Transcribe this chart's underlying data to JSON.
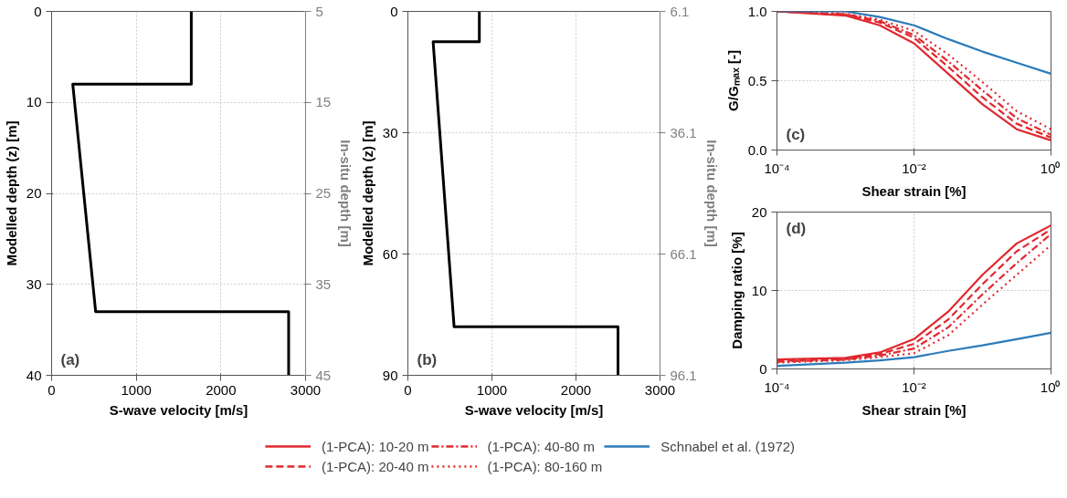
{
  "chart_data": [
    {
      "type": "line",
      "xlabel": "S-wave velocity [m/s]",
      "ylabel": "Modelled depth (z) [m]",
      "y2label": "In-situ depth [m]",
      "annotations": [
        "(a)"
      ],
      "grid": true,
      "marker": "none",
      "xlim": [
        0,
        3000
      ],
      "xticks": [
        0,
        1000,
        2000,
        3000
      ],
      "ylim": [
        40,
        0
      ],
      "yticks": [
        0,
        10,
        20,
        30,
        40
      ],
      "y2lim": [
        45,
        5
      ],
      "y2ticks": [
        5,
        15,
        25,
        35,
        45
      ],
      "series": [
        {
          "color": "#000000",
          "x": [
            1650,
            1650,
            250,
            520,
            2800,
            2800
          ],
          "values": [
            0,
            8,
            8,
            33,
            33,
            40
          ]
        }
      ]
    },
    {
      "type": "line",
      "xlabel": "S-wave velocity [m/s]",
      "ylabel": "Modelled depth (z) [m]",
      "y2label": "In-situ depth [m]",
      "annotations": [
        "(b)"
      ],
      "grid": true,
      "marker": "none",
      "xlim": [
        0,
        3000
      ],
      "xticks": [
        0,
        1000,
        2000,
        3000
      ],
      "ylim": [
        90,
        0
      ],
      "yticks": [
        0,
        30,
        60,
        90
      ],
      "y2lim": [
        96.1,
        6.1
      ],
      "y2ticks": [
        6.1,
        36.1,
        66.1,
        96.1
      ],
      "series": [
        {
          "color": "#000000",
          "x": [
            850,
            850,
            300,
            550,
            2500,
            2500
          ],
          "values": [
            0,
            7.5,
            7.5,
            78,
            78,
            90
          ]
        }
      ]
    },
    {
      "type": "line",
      "xlabel": "Shear strain [%]",
      "ylabel": "G/Gₘₐₓ [-]",
      "annotations": [
        "(c)"
      ],
      "grid": true,
      "marker": "none",
      "log": "x",
      "xlim": [
        0.0001,
        1
      ],
      "xticks": [
        {
          "value": 0.0001,
          "label": "10⁻⁴"
        },
        {
          "value": 0.01,
          "label": "10⁻²"
        },
        {
          "value": 1,
          "label": "10⁰"
        }
      ],
      "ylim": [
        0,
        1
      ],
      "yticks": [
        {
          "value": 0,
          "label": "0.0"
        },
        0.5,
        {
          "value": 1,
          "label": "1.0"
        }
      ],
      "x": [
        0.0001,
        0.001,
        0.00316,
        0.01,
        0.0316,
        0.1,
        0.316,
        1
      ],
      "series": [
        {
          "color": "#e0282e",
          "line_style": "solid",
          "values": [
            1.0,
            0.97,
            0.9,
            0.77,
            0.55,
            0.33,
            0.15,
            0.07
          ]
        },
        {
          "color": "#e0282e",
          "line_style": "dashed",
          "values": [
            1.0,
            0.975,
            0.92,
            0.81,
            0.6,
            0.38,
            0.19,
            0.09
          ]
        },
        {
          "color": "#e0282e",
          "line_style": "dashdot",
          "values": [
            1.0,
            0.98,
            0.93,
            0.83,
            0.64,
            0.43,
            0.23,
            0.11
          ]
        },
        {
          "color": "#e0282e",
          "line_style": "dotted",
          "values": [
            1.0,
            0.985,
            0.94,
            0.86,
            0.69,
            0.49,
            0.28,
            0.15
          ]
        },
        {
          "color": "#2b7bba",
          "line_style": "solid",
          "values": [
            1.0,
            1.0,
            0.96,
            0.9,
            0.8,
            0.71,
            0.63,
            0.55
          ]
        }
      ]
    },
    {
      "type": "line",
      "xlabel": "Shear strain [%]",
      "ylabel": "Damping ratio [%]",
      "annotations": [
        "(d)"
      ],
      "grid": true,
      "legend": "bottom",
      "marker": "none",
      "log": "x",
      "xlim": [
        0.0001,
        1
      ],
      "xticks": [
        {
          "value": 0.0001,
          "label": "10⁻⁴"
        },
        {
          "value": 0.01,
          "label": "10⁻²"
        },
        {
          "value": 1,
          "label": "10⁰"
        }
      ],
      "ylim": [
        0,
        20
      ],
      "yticks": [
        0,
        10,
        20
      ],
      "x": [
        0.0001,
        0.001,
        0.00316,
        0.01,
        0.0316,
        0.1,
        0.316,
        1
      ],
      "series": [
        {
          "name": "(1-PCA): 10-20 m",
          "color": "#e0282e",
          "line_style": "solid",
          "values": [
            1.2,
            1.4,
            2.1,
            3.8,
            7.3,
            12,
            16,
            18.3
          ]
        },
        {
          "name": "(1-PCA): 20-40 m",
          "color": "#e0282e",
          "line_style": "dashed",
          "values": [
            1.0,
            1.3,
            1.9,
            3.2,
            6.3,
            10.8,
            15,
            17.8
          ]
        },
        {
          "name": "(1-PCA): 40-80 m",
          "color": "#e0282e",
          "line_style": "dashdot",
          "values": [
            0.9,
            1.2,
            1.7,
            2.6,
            5.3,
            9.5,
            13.5,
            17.2
          ]
        },
        {
          "name": "(1-PCA): 80-160 m",
          "color": "#e0282e",
          "line_style": "dotted",
          "values": [
            0.8,
            1.1,
            1.5,
            2.0,
            4.3,
            8.2,
            12,
            15.8
          ]
        },
        {
          "name": "Schnabel et al. (1972)",
          "color": "#2b7bba",
          "line_style": "solid",
          "values": [
            0.4,
            0.8,
            1.1,
            1.5,
            2.3,
            3.0,
            3.8,
            4.6
          ]
        }
      ]
    }
  ]
}
